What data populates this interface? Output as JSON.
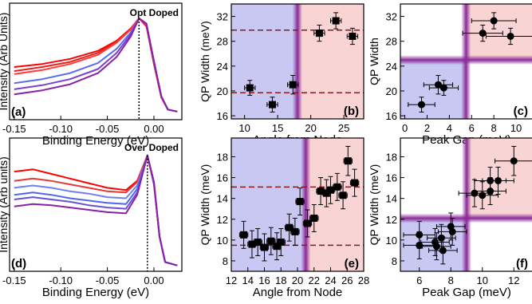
{
  "colors": {
    "blue_region": "#c8c8f2",
    "red_region": "#f8d4d4",
    "purple_band": "#8b2a99",
    "marker": "#000000",
    "guide_line": "#8b1a1a"
  },
  "chart_data": [
    {
      "panel": "(a)",
      "type": "line",
      "title": "Opt Doped",
      "xlabel": "Binding Energy (eV)",
      "ylabel": "Intensity (Arb Units)",
      "xlim": [
        -0.155,
        0.03
      ],
      "ylim": [
        0,
        1.15
      ],
      "xticks": [
        "-0.15",
        "-0.10",
        "-0.05",
        "0.00"
      ],
      "peak_x": -0.016,
      "series": [
        {
          "color": "#ff0000",
          "values": [
            [
              -0.15,
              0.52
            ],
            [
              -0.12,
              0.55
            ],
            [
              -0.09,
              0.6
            ],
            [
              -0.06,
              0.68
            ],
            [
              -0.04,
              0.78
            ],
            [
              -0.025,
              0.9
            ],
            [
              -0.016,
              1.0
            ],
            [
              -0.008,
              0.92
            ],
            [
              0.0,
              0.55
            ],
            [
              0.008,
              0.22
            ],
            [
              0.015,
              0.1
            ],
            [
              0.025,
              0.08
            ]
          ]
        },
        {
          "color": "#e8201e",
          "values": [
            [
              -0.15,
              0.48
            ],
            [
              -0.12,
              0.52
            ],
            [
              -0.09,
              0.57
            ],
            [
              -0.06,
              0.66
            ],
            [
              -0.04,
              0.77
            ],
            [
              -0.025,
              0.89
            ],
            [
              -0.016,
              1.0
            ],
            [
              -0.008,
              0.93
            ],
            [
              0.0,
              0.55
            ],
            [
              0.008,
              0.22
            ],
            [
              0.015,
              0.1
            ],
            [
              0.025,
              0.08
            ]
          ]
        },
        {
          "color": "#ff3b3b",
          "values": [
            [
              -0.15,
              0.45
            ],
            [
              -0.12,
              0.49
            ],
            [
              -0.09,
              0.55
            ],
            [
              -0.06,
              0.64
            ],
            [
              -0.04,
              0.76
            ],
            [
              -0.025,
              0.89
            ],
            [
              -0.016,
              1.0
            ],
            [
              -0.008,
              0.93
            ],
            [
              0.0,
              0.56
            ],
            [
              0.008,
              0.22
            ],
            [
              0.015,
              0.1
            ],
            [
              0.025,
              0.08
            ]
          ]
        },
        {
          "color": "#5b6cf0",
          "values": [
            [
              -0.15,
              0.36
            ],
            [
              -0.12,
              0.4
            ],
            [
              -0.09,
              0.46
            ],
            [
              -0.06,
              0.56
            ],
            [
              -0.04,
              0.7
            ],
            [
              -0.025,
              0.86
            ],
            [
              -0.016,
              1.0
            ],
            [
              -0.008,
              0.94
            ],
            [
              0.0,
              0.57
            ],
            [
              0.008,
              0.23
            ],
            [
              0.015,
              0.1
            ],
            [
              0.025,
              0.08
            ]
          ]
        },
        {
          "color": "#7a3fd0",
          "values": [
            [
              -0.15,
              0.3
            ],
            [
              -0.12,
              0.34
            ],
            [
              -0.09,
              0.4
            ],
            [
              -0.06,
              0.5
            ],
            [
              -0.04,
              0.66
            ],
            [
              -0.025,
              0.84
            ],
            [
              -0.016,
              1.0
            ],
            [
              -0.008,
              0.94
            ],
            [
              0.0,
              0.57
            ],
            [
              0.008,
              0.23
            ],
            [
              0.015,
              0.1
            ],
            [
              0.025,
              0.08
            ]
          ]
        },
        {
          "color": "#8a1fa8",
          "values": [
            [
              -0.15,
              0.25
            ],
            [
              -0.12,
              0.29
            ],
            [
              -0.09,
              0.35
            ],
            [
              -0.06,
              0.46
            ],
            [
              -0.04,
              0.62
            ],
            [
              -0.025,
              0.82
            ],
            [
              -0.016,
              1.0
            ],
            [
              -0.008,
              0.95
            ],
            [
              0.0,
              0.58
            ],
            [
              0.008,
              0.23
            ],
            [
              0.015,
              0.1
            ],
            [
              0.025,
              0.08
            ]
          ]
        }
      ]
    },
    {
      "panel": "(b)",
      "type": "scatter",
      "xlabel": "Angle from Node",
      "ylabel": "QP Width (meV)",
      "xlim": [
        8,
        28
      ],
      "ylim": [
        15.5,
        34
      ],
      "xticks": [
        10,
        15,
        20,
        25
      ],
      "yticks": [
        16,
        20,
        24,
        28,
        32
      ],
      "divider_x": 18,
      "hlines": [
        19.7,
        29.8
      ],
      "points": [
        {
          "x": 10.8,
          "y": 20.5,
          "xerr": 0.8,
          "yerr": 1.2
        },
        {
          "x": 14.2,
          "y": 17.8,
          "xerr": 0.8,
          "yerr": 1.2
        },
        {
          "x": 17.3,
          "y": 21.0,
          "xerr": 0.8,
          "yerr": 1.5
        },
        {
          "x": 21.3,
          "y": 29.3,
          "xerr": 0.8,
          "yerr": 1.3
        },
        {
          "x": 23.8,
          "y": 31.3,
          "xerr": 0.8,
          "yerr": 1.3
        },
        {
          "x": 26.3,
          "y": 28.8,
          "xerr": 0.8,
          "yerr": 1.3
        }
      ]
    },
    {
      "panel": "(c)",
      "type": "scatter",
      "xlabel": "Peak Gap (meV)",
      "ylabel": "QP Width",
      "xlim": [
        -0.4,
        11.5
      ],
      "ylim": [
        15.5,
        34
      ],
      "xticks": [
        0,
        2,
        4,
        6,
        8,
        10
      ],
      "yticks": [
        16,
        20,
        24,
        28,
        32
      ],
      "divider_x": 5.5,
      "divider_y": 25.0,
      "points": [
        {
          "x": 1.5,
          "y": 17.8,
          "xerr": 1.2,
          "yerr": 1.2
        },
        {
          "x": 3.0,
          "y": 21.0,
          "xerr": 1.3,
          "yerr": 1.5
        },
        {
          "x": 3.5,
          "y": 20.5,
          "xerr": 1.3,
          "yerr": 1.2
        },
        {
          "x": 7.0,
          "y": 29.3,
          "xerr": 1.8,
          "yerr": 1.3
        },
        {
          "x": 8.0,
          "y": 31.3,
          "xerr": 2.0,
          "yerr": 1.3
        },
        {
          "x": 9.5,
          "y": 28.8,
          "xerr": 2.2,
          "yerr": 1.3
        }
      ]
    },
    {
      "panel": "(d)",
      "type": "line",
      "title": "Over Doped",
      "xlabel": "Binding Energy (eV)",
      "ylabel": "Intensity (Arb units)",
      "xlim": [
        -0.155,
        0.03
      ],
      "ylim": [
        0,
        1.15
      ],
      "xticks": [
        "-0.15",
        "-0.10",
        "-0.05",
        "0.00"
      ],
      "peak_x": -0.007,
      "series": [
        {
          "color": "#ff0000",
          "values": [
            [
              -0.15,
              0.86
            ],
            [
              -0.13,
              0.88
            ],
            [
              -0.11,
              0.84
            ],
            [
              -0.09,
              0.8
            ],
            [
              -0.07,
              0.76
            ],
            [
              -0.05,
              0.72
            ],
            [
              -0.03,
              0.7
            ],
            [
              -0.018,
              0.78
            ],
            [
              -0.007,
              1.0
            ],
            [
              0.0,
              0.75
            ],
            [
              0.006,
              0.3
            ],
            [
              0.012,
              0.08
            ],
            [
              0.025,
              0.05
            ]
          ]
        },
        {
          "color": "#e33a3a",
          "values": [
            [
              -0.15,
              0.78
            ],
            [
              -0.13,
              0.8
            ],
            [
              -0.11,
              0.78
            ],
            [
              -0.09,
              0.75
            ],
            [
              -0.07,
              0.72
            ],
            [
              -0.05,
              0.69
            ],
            [
              -0.03,
              0.68
            ],
            [
              -0.018,
              0.77
            ],
            [
              -0.007,
              1.0
            ],
            [
              0.0,
              0.75
            ],
            [
              0.006,
              0.3
            ],
            [
              0.012,
              0.08
            ],
            [
              0.025,
              0.05
            ]
          ]
        },
        {
          "color": "#6f80f2",
          "values": [
            [
              -0.15,
              0.72
            ],
            [
              -0.13,
              0.74
            ],
            [
              -0.11,
              0.72
            ],
            [
              -0.09,
              0.69
            ],
            [
              -0.07,
              0.67
            ],
            [
              -0.05,
              0.64
            ],
            [
              -0.03,
              0.63
            ],
            [
              -0.018,
              0.74
            ],
            [
              -0.007,
              1.0
            ],
            [
              0.0,
              0.76
            ],
            [
              0.006,
              0.3
            ],
            [
              0.012,
              0.08
            ],
            [
              0.025,
              0.05
            ]
          ]
        },
        {
          "color": "#4f66f0",
          "values": [
            [
              -0.15,
              0.66
            ],
            [
              -0.13,
              0.68
            ],
            [
              -0.11,
              0.66
            ],
            [
              -0.09,
              0.63
            ],
            [
              -0.07,
              0.61
            ],
            [
              -0.05,
              0.59
            ],
            [
              -0.03,
              0.58
            ],
            [
              -0.018,
              0.71
            ],
            [
              -0.007,
              1.0
            ],
            [
              0.0,
              0.76
            ],
            [
              0.006,
              0.3
            ],
            [
              0.012,
              0.08
            ],
            [
              0.025,
              0.05
            ]
          ]
        },
        {
          "color": "#6a4fd8",
          "values": [
            [
              -0.15,
              0.62
            ],
            [
              -0.13,
              0.64
            ],
            [
              -0.11,
              0.62
            ],
            [
              -0.09,
              0.6
            ],
            [
              -0.07,
              0.57
            ],
            [
              -0.05,
              0.55
            ],
            [
              -0.03,
              0.54
            ],
            [
              -0.018,
              0.68
            ],
            [
              -0.007,
              1.0
            ],
            [
              0.0,
              0.77
            ],
            [
              0.006,
              0.3
            ],
            [
              0.012,
              0.08
            ],
            [
              0.025,
              0.05
            ]
          ]
        },
        {
          "color": "#8a1fa8",
          "values": [
            [
              -0.15,
              0.56
            ],
            [
              -0.13,
              0.58
            ],
            [
              -0.11,
              0.57
            ],
            [
              -0.09,
              0.55
            ],
            [
              -0.07,
              0.53
            ],
            [
              -0.05,
              0.51
            ],
            [
              -0.03,
              0.5
            ],
            [
              -0.018,
              0.66
            ],
            [
              -0.007,
              1.0
            ],
            [
              0.0,
              0.77
            ],
            [
              0.006,
              0.3
            ],
            [
              0.012,
              0.08
            ],
            [
              0.025,
              0.05
            ]
          ]
        }
      ]
    },
    {
      "panel": "(e)",
      "type": "scatter",
      "xlabel": "Angle from Node",
      "ylabel": "QP Width (meV)",
      "xlim": [
        12,
        28
      ],
      "ylim": [
        7,
        19.8
      ],
      "xticks": [
        12,
        14,
        16,
        18,
        20,
        22,
        24,
        26,
        28
      ],
      "yticks": [
        8,
        10,
        12,
        14,
        16,
        18
      ],
      "divider_x": 21,
      "hlines": [
        9.5,
        15.1
      ],
      "points": [
        {
          "x": 13.5,
          "y": 10.5,
          "xerr": 0.5,
          "yerr": 1.3
        },
        {
          "x": 14.5,
          "y": 9.6,
          "xerr": 0.5,
          "yerr": 1.3
        },
        {
          "x": 15.2,
          "y": 9.8,
          "xerr": 0.5,
          "yerr": 1.3
        },
        {
          "x": 16.0,
          "y": 9.3,
          "xerr": 0.5,
          "yerr": 1.3
        },
        {
          "x": 16.8,
          "y": 9.9,
          "xerr": 0.5,
          "yerr": 1.3
        },
        {
          "x": 17.5,
          "y": 9.4,
          "xerr": 0.5,
          "yerr": 1.3
        },
        {
          "x": 18.0,
          "y": 9.8,
          "xerr": 0.5,
          "yerr": 1.3
        },
        {
          "x": 19.0,
          "y": 11.2,
          "xerr": 0.5,
          "yerr": 1.3
        },
        {
          "x": 19.7,
          "y": 10.8,
          "xerr": 0.5,
          "yerr": 1.3
        },
        {
          "x": 20.3,
          "y": 13.7,
          "xerr": 0.5,
          "yerr": 1.3
        },
        {
          "x": 21.2,
          "y": 11.6,
          "xerr": 0.5,
          "yerr": 1.3
        },
        {
          "x": 22.0,
          "y": 12.1,
          "xerr": 0.5,
          "yerr": 1.3
        },
        {
          "x": 22.8,
          "y": 14.7,
          "xerr": 0.5,
          "yerr": 1.3
        },
        {
          "x": 23.5,
          "y": 14.5,
          "xerr": 0.5,
          "yerr": 1.3
        },
        {
          "x": 24.0,
          "y": 14.8,
          "xerr": 0.5,
          "yerr": 1.3
        },
        {
          "x": 24.8,
          "y": 15.1,
          "xerr": 0.5,
          "yerr": 1.3
        },
        {
          "x": 25.5,
          "y": 14.3,
          "xerr": 0.5,
          "yerr": 1.3
        },
        {
          "x": 26.1,
          "y": 17.6,
          "xerr": 0.5,
          "yerr": 1.4
        },
        {
          "x": 26.9,
          "y": 15.5,
          "xerr": 0.5,
          "yerr": 1.3
        }
      ]
    },
    {
      "panel": "(f)",
      "type": "scatter",
      "xlabel": "Peak Gap (meV)",
      "ylabel": "QP Width (meV)",
      "xlim": [
        4.8,
        13.2
      ],
      "ylim": [
        7,
        19.8
      ],
      "xticks": [
        6,
        8,
        10,
        12
      ],
      "yticks": [
        8,
        10,
        12,
        14,
        16,
        18
      ],
      "divider_x": 9.0,
      "divider_y": 12.1,
      "points": [
        {
          "x": 6.0,
          "y": 10.5,
          "xerr": 1.0,
          "yerr": 1.3
        },
        {
          "x": 6.0,
          "y": 9.5,
          "xerr": 1.0,
          "yerr": 1.3
        },
        {
          "x": 7.0,
          "y": 9.8,
          "xerr": 0.9,
          "yerr": 1.3
        },
        {
          "x": 7.1,
          "y": 9.4,
          "xerr": 0.9,
          "yerr": 1.3
        },
        {
          "x": 7.4,
          "y": 10.2,
          "xerr": 0.9,
          "yerr": 1.3
        },
        {
          "x": 7.5,
          "y": 9.0,
          "xerr": 0.9,
          "yerr": 1.3
        },
        {
          "x": 8.0,
          "y": 11.3,
          "xerr": 0.9,
          "yerr": 1.3
        },
        {
          "x": 8.1,
          "y": 10.8,
          "xerr": 0.9,
          "yerr": 1.3
        },
        {
          "x": 9.5,
          "y": 14.5,
          "xerr": 1.0,
          "yerr": 1.3
        },
        {
          "x": 10.0,
          "y": 14.3,
          "xerr": 1.0,
          "yerr": 1.3
        },
        {
          "x": 10.5,
          "y": 15.7,
          "xerr": 1.0,
          "yerr": 1.3
        },
        {
          "x": 10.5,
          "y": 14.7,
          "xerr": 1.0,
          "yerr": 1.3
        },
        {
          "x": 11.0,
          "y": 15.7,
          "xerr": 1.0,
          "yerr": 1.3
        },
        {
          "x": 12.0,
          "y": 17.6,
          "xerr": 1.2,
          "yerr": 1.4
        }
      ]
    }
  ]
}
